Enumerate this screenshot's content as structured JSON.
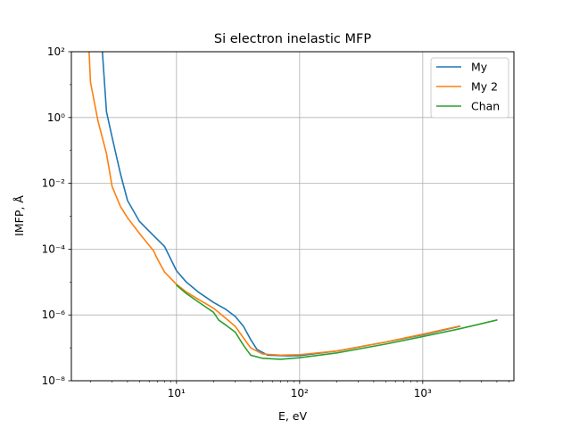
{
  "chart_data": {
    "type": "line",
    "title": "Si electron inelastic MFP",
    "xlabel": "E, eV",
    "ylabel": "IMFP, Å",
    "x_scale": "log",
    "y_scale": "log",
    "xlim": [
      1.4,
      5500
    ],
    "ylim": [
      1e-08,
      100
    ],
    "x_ticks": [
      {
        "value": 10,
        "label": "10¹"
      },
      {
        "value": 100,
        "label": "10²"
      },
      {
        "value": 1000,
        "label": "10³"
      }
    ],
    "y_ticks": [
      {
        "value": 1e-08,
        "label": "10⁻⁸"
      },
      {
        "value": 1e-06,
        "label": "10⁻⁶"
      },
      {
        "value": 0.0001,
        "label": "10⁻⁴"
      },
      {
        "value": 0.01,
        "label": "10⁻²"
      },
      {
        "value": 1,
        "label": "10⁰"
      },
      {
        "value": 100,
        "label": "10²"
      }
    ],
    "grid": true,
    "legend": "top-right",
    "series": [
      {
        "name": "My",
        "color": "#1f77b4",
        "points": [
          [
            2.5,
            100
          ],
          [
            2.7,
            1.5
          ],
          [
            3.0,
            0.25
          ],
          [
            3.5,
            0.02
          ],
          [
            4.0,
            0.003
          ],
          [
            5.0,
            0.0007
          ],
          [
            6.0,
            0.00035
          ],
          [
            8.0,
            0.00012
          ],
          [
            10.0,
            2.2e-05
          ],
          [
            12.0,
            1e-05
          ],
          [
            15.0,
            5e-06
          ],
          [
            20.0,
            2.4e-06
          ],
          [
            25.0,
            1.5e-06
          ],
          [
            30.0,
            9e-07
          ],
          [
            35.0,
            4.5e-07
          ],
          [
            40.0,
            1.8e-07
          ],
          [
            45.0,
            9e-08
          ],
          [
            55.0,
            6e-08
          ],
          [
            80.0,
            5.7e-08
          ],
          [
            100.0,
            5.8e-08
          ],
          [
            200.0,
            8e-08
          ],
          [
            500.0,
            1.5e-07
          ],
          [
            1000.0,
            2.5e-07
          ],
          [
            2000.0,
            4.5e-07
          ]
        ]
      },
      {
        "name": "My 2",
        "color": "#ff7f0e",
        "points": [
          [
            1.95,
            100
          ],
          [
            2.0,
            12
          ],
          [
            2.3,
            0.8
          ],
          [
            2.7,
            0.08
          ],
          [
            3.0,
            0.008
          ],
          [
            3.5,
            0.002
          ],
          [
            4.0,
            0.0009
          ],
          [
            5.0,
            0.0003
          ],
          [
            6.0,
            0.00013
          ],
          [
            6.5,
            9e-05
          ],
          [
            7.0,
            5e-05
          ],
          [
            8.0,
            2e-05
          ],
          [
            10.0,
            8.5e-06
          ],
          [
            12.0,
            5e-06
          ],
          [
            15.0,
            3e-06
          ],
          [
            20.0,
            1.6e-06
          ],
          [
            25.0,
            8e-07
          ],
          [
            30.0,
            4.5e-07
          ],
          [
            35.0,
            2e-07
          ],
          [
            40.0,
            1e-07
          ],
          [
            50.0,
            6.5e-08
          ],
          [
            70.0,
            6e-08
          ],
          [
            100.0,
            6.2e-08
          ],
          [
            200.0,
            8e-08
          ],
          [
            500.0,
            1.5e-07
          ],
          [
            1000.0,
            2.6e-07
          ],
          [
            2000.0,
            4.6e-07
          ]
        ]
      },
      {
        "name": "Chan",
        "color": "#2ca02c",
        "points": [
          [
            10.0,
            8e-06
          ],
          [
            12.0,
            4.5e-06
          ],
          [
            15.0,
            2.5e-06
          ],
          [
            20.0,
            1.2e-06
          ],
          [
            22.0,
            7e-07
          ],
          [
            25.0,
            5e-07
          ],
          [
            30.0,
            3e-07
          ],
          [
            35.0,
            1.2e-07
          ],
          [
            40.0,
            6e-08
          ],
          [
            50.0,
            4.8e-08
          ],
          [
            70.0,
            4.5e-08
          ],
          [
            100.0,
            5e-08
          ],
          [
            200.0,
            7e-08
          ],
          [
            500.0,
            1.3e-07
          ],
          [
            1000.0,
            2.2e-07
          ],
          [
            2000.0,
            3.8e-07
          ],
          [
            4000.0,
            7e-07
          ]
        ]
      }
    ]
  }
}
